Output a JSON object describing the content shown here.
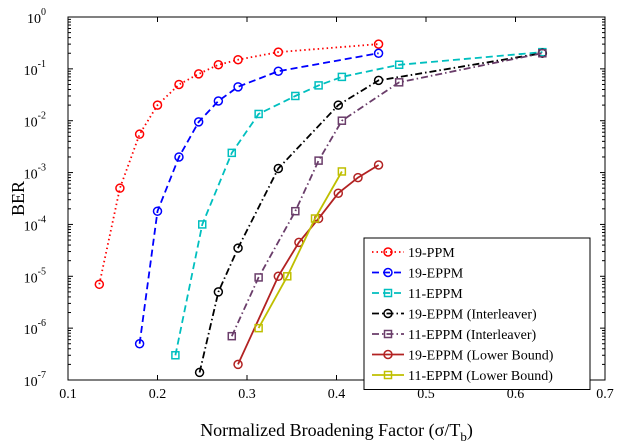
{
  "chart_data": {
    "type": "line",
    "title": "",
    "xlabel": "Normalized Broadening Factor (σ/T",
    "xlabel_sub": "b",
    "xlabel_close": ")",
    "ylabel": "BER",
    "xlim": [
      0.1,
      0.7
    ],
    "ylim": [
      1e-07,
      1
    ],
    "yscale": "log",
    "grid": false,
    "legend_position": "bottom-right",
    "x_ticks": [
      "0.1",
      "0.2",
      "0.3",
      "0.4",
      "0.5",
      "0.6",
      "0.7"
    ],
    "x_tick_values": [
      0.1,
      0.2,
      0.3,
      0.4,
      0.5,
      0.6,
      0.7
    ],
    "y_tick_exponents": [
      0,
      -1,
      -2,
      -3,
      -4,
      -5,
      -6,
      -7
    ],
    "y_tick_base": "10",
    "series": [
      {
        "name": "19-PPM",
        "color": "#ff0000",
        "dash": "dotted",
        "marker": "circle",
        "points": [
          [
            0.135,
            7e-06
          ],
          [
            0.158,
            0.0005
          ],
          [
            0.18,
            0.0055
          ],
          [
            0.2,
            0.02
          ],
          [
            0.224,
            0.05
          ],
          [
            0.246,
            0.08
          ],
          [
            0.268,
            0.12
          ],
          [
            0.29,
            0.15
          ],
          [
            0.335,
            0.21
          ],
          [
            0.447,
            0.3
          ]
        ]
      },
      {
        "name": "19-EPPM",
        "color": "#0000ff",
        "dash": "dashed",
        "marker": "circle",
        "points": [
          [
            0.18,
            5e-07
          ],
          [
            0.2,
            0.00018
          ],
          [
            0.224,
            0.002
          ],
          [
            0.246,
            0.0095
          ],
          [
            0.268,
            0.024
          ],
          [
            0.29,
            0.045
          ],
          [
            0.335,
            0.09
          ],
          [
            0.447,
            0.2
          ]
        ]
      },
      {
        "name": "11-EPPM",
        "color": "#00bfbf",
        "dash": "dashed",
        "marker": "square",
        "points": [
          [
            0.22,
            3e-07
          ],
          [
            0.25,
            0.0001
          ],
          [
            0.283,
            0.0024
          ],
          [
            0.313,
            0.0135
          ],
          [
            0.354,
            0.03
          ],
          [
            0.38,
            0.048
          ],
          [
            0.406,
            0.07
          ],
          [
            0.47,
            0.12
          ],
          [
            0.63,
            0.21
          ]
        ]
      },
      {
        "name": "19-EPPM (Interleaver)",
        "color": "#000000",
        "dash": "dashdot",
        "marker": "circle",
        "points": [
          [
            0.247,
            1.4e-07
          ],
          [
            0.268,
            5e-06
          ],
          [
            0.29,
            3.5e-05
          ],
          [
            0.335,
            0.0012
          ],
          [
            0.402,
            0.02
          ],
          [
            0.447,
            0.06
          ],
          [
            0.63,
            0.2
          ]
        ]
      },
      {
        "name": "11-EPPM (Interleaver)",
        "color": "#6a3d6a",
        "dash": "dashdot",
        "marker": "square",
        "points": [
          [
            0.283,
            7e-07
          ],
          [
            0.313,
            9.5e-06
          ],
          [
            0.354,
            0.00018
          ],
          [
            0.38,
            0.0017
          ],
          [
            0.406,
            0.01
          ],
          [
            0.47,
            0.055
          ],
          [
            0.63,
            0.2
          ]
        ]
      },
      {
        "name": "19-EPPM (Lower Bound)",
        "color": "#b22222",
        "dash": "solid",
        "marker": "circle",
        "points": [
          [
            0.29,
            2e-07
          ],
          [
            0.335,
            1e-05
          ],
          [
            0.358,
            4.5e-05
          ],
          [
            0.38,
            0.00013
          ],
          [
            0.402,
            0.0004
          ],
          [
            0.424,
            0.0008
          ],
          [
            0.447,
            0.0014
          ]
        ]
      },
      {
        "name": "11-EPPM (Lower Bound)",
        "color": "#bfbf00",
        "dash": "solid",
        "marker": "square",
        "points": [
          [
            0.313,
            1e-06
          ],
          [
            0.345,
            1e-05
          ],
          [
            0.376,
            0.00013
          ],
          [
            0.406,
            0.00105
          ]
        ]
      }
    ]
  }
}
